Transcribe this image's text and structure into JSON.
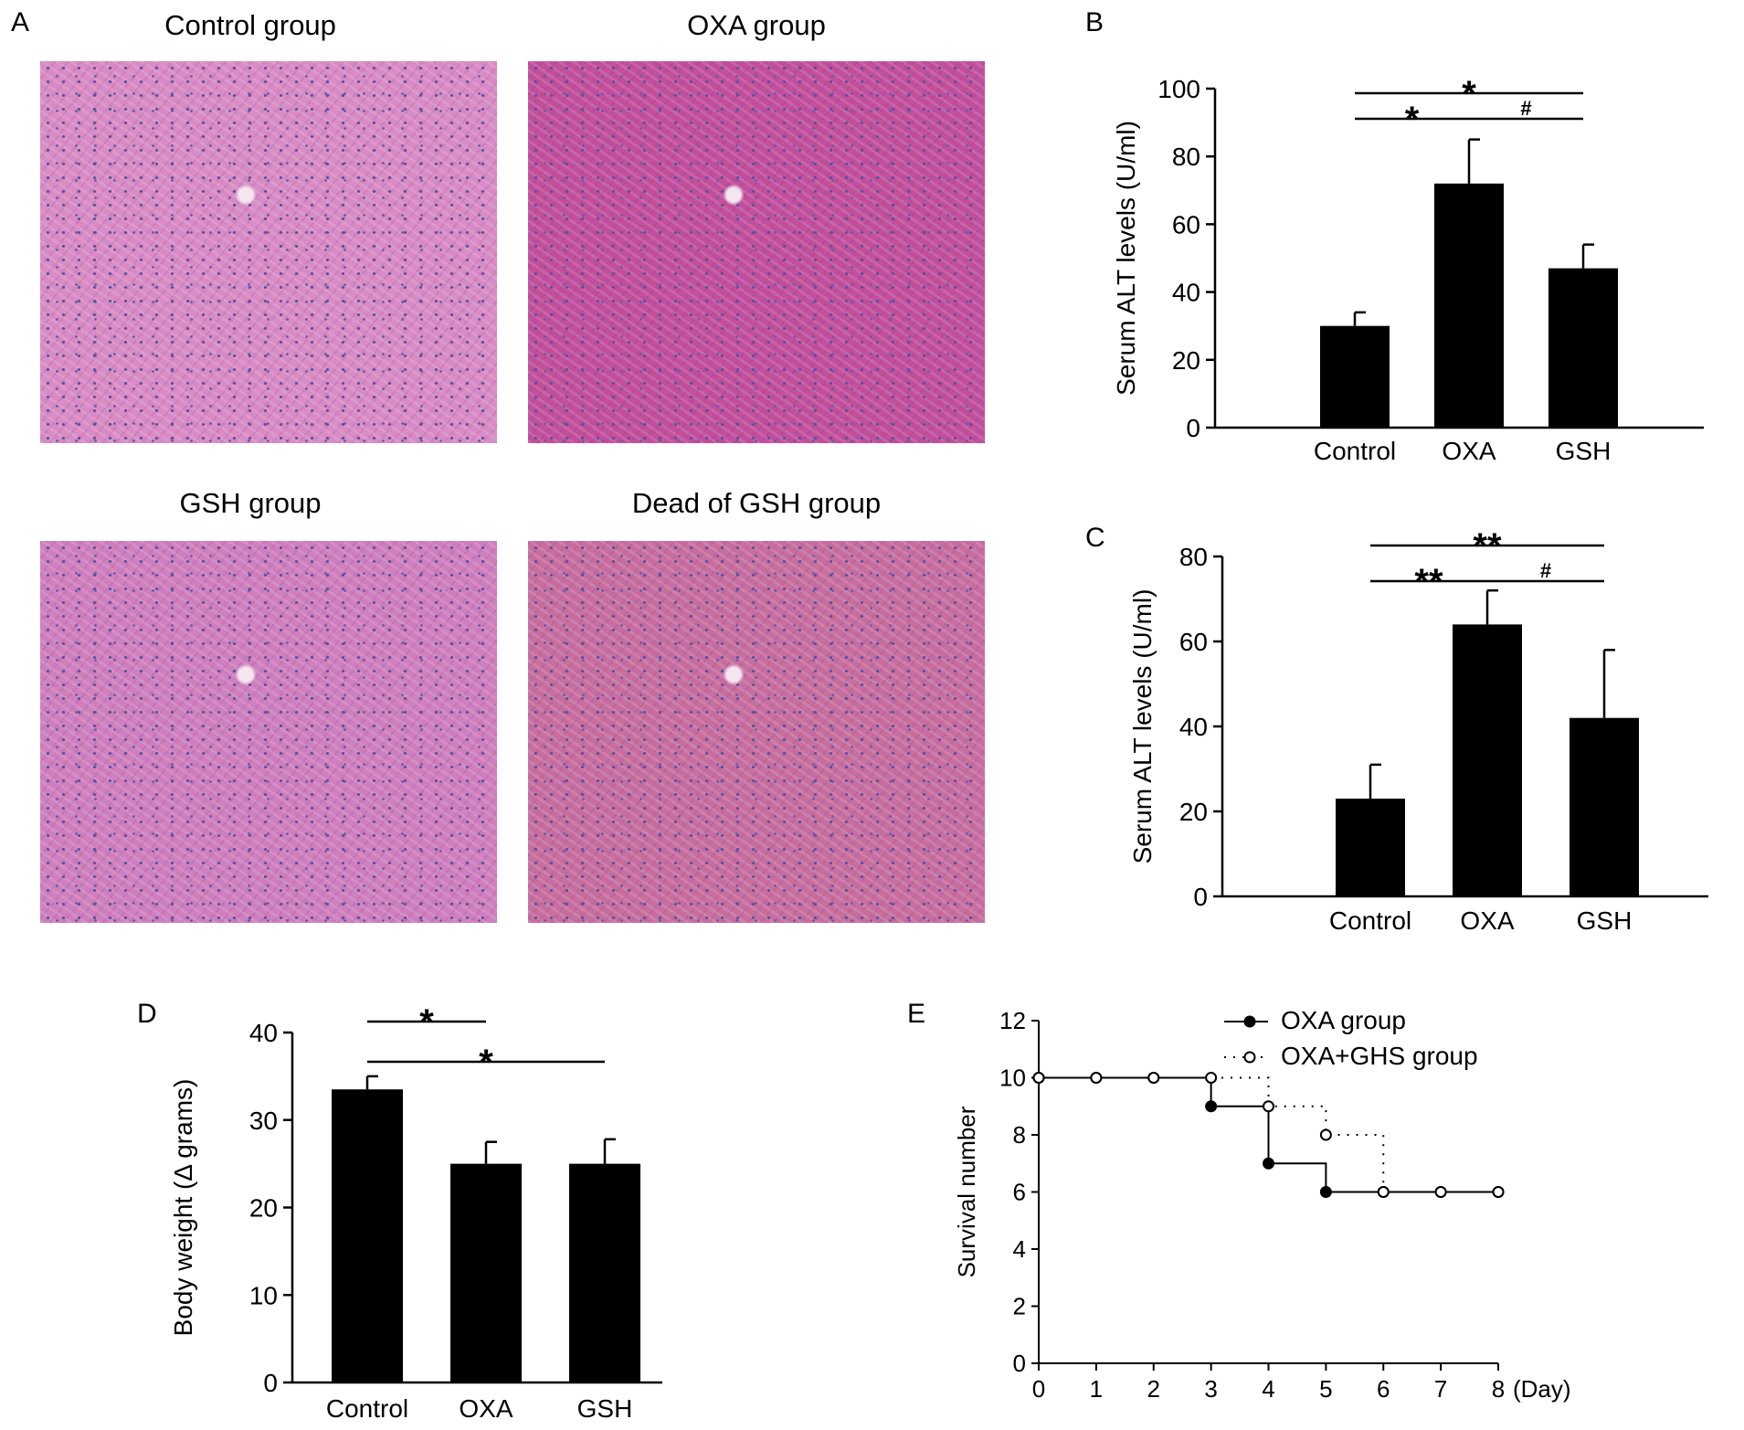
{
  "panels": {
    "A": {
      "letter": "A",
      "images": [
        {
          "title": "Control group",
          "stain": "#d88bc4"
        },
        {
          "title": "OXA group",
          "stain": "#c24f9c"
        },
        {
          "title": "GSH group",
          "stain": "#cf7fbd"
        },
        {
          "title": "Dead of GSH group",
          "stain": "#c76e9f"
        }
      ]
    },
    "B": {
      "letter": "B"
    },
    "C": {
      "letter": "C"
    },
    "D": {
      "letter": "D"
    },
    "E": {
      "letter": "E"
    }
  },
  "chart_data": [
    {
      "id": "B",
      "type": "bar",
      "categories": [
        "Control",
        "OXA",
        "GSH"
      ],
      "values": [
        30,
        72,
        47
      ],
      "errors": [
        4,
        13,
        7
      ],
      "ylabel": "Serum ALT levels (U/ml)",
      "ylim": [
        0,
        100
      ],
      "yticks": [
        0,
        20,
        40,
        60,
        80,
        100
      ],
      "bar_color": "#000000",
      "significance": [
        {
          "from": 0,
          "to": 2,
          "label": "*",
          "level": 2
        },
        {
          "from": 0,
          "to": 1,
          "label": "*",
          "level": 1
        },
        {
          "from": 1,
          "to": 2,
          "label": "#",
          "level": 1
        }
      ]
    },
    {
      "id": "C",
      "type": "bar",
      "categories": [
        "Control",
        "OXA",
        "GSH"
      ],
      "values": [
        23,
        64,
        42
      ],
      "errors": [
        8,
        8,
        16
      ],
      "ylabel": "Serum ALT levels (U/ml)",
      "ylim": [
        0,
        80
      ],
      "yticks": [
        0,
        20,
        40,
        60,
        80
      ],
      "bar_color": "#000000",
      "significance": [
        {
          "from": 0,
          "to": 2,
          "label": "**",
          "level": 2
        },
        {
          "from": 0,
          "to": 1,
          "label": "**",
          "level": 1
        },
        {
          "from": 1,
          "to": 2,
          "label": "#",
          "level": 1
        }
      ]
    },
    {
      "id": "D",
      "type": "bar",
      "categories": [
        "Control",
        "OXA",
        "GSH"
      ],
      "values": [
        33.5,
        25,
        25
      ],
      "errors": [
        1.5,
        2.5,
        2.8
      ],
      "ylabel": "Body weight (Δ grams)",
      "ylim": [
        0,
        40
      ],
      "yticks": [
        0,
        10,
        20,
        30,
        40
      ],
      "bar_color": "#000000",
      "significance": [
        {
          "from": 0,
          "to": 1,
          "label": "*",
          "level": 2
        },
        {
          "from": 0,
          "to": 2,
          "label": "*",
          "level": 1
        }
      ]
    },
    {
      "id": "E",
      "type": "line",
      "x": [
        0,
        1,
        2,
        3,
        4,
        5,
        6,
        7,
        8
      ],
      "xticks": [
        0,
        1,
        2,
        3,
        4,
        5,
        6,
        7,
        8
      ],
      "xunit": "(Day)",
      "ylabel": "Survival number",
      "ylim": [
        0,
        12
      ],
      "yticks": [
        0,
        2,
        4,
        6,
        8,
        10,
        12
      ],
      "legend_position": "top-right",
      "series": [
        {
          "name": "OXA group",
          "style": "step-solid",
          "marker": "filled",
          "values": [
            10,
            10,
            10,
            9,
            7,
            6,
            6,
            6,
            6
          ]
        },
        {
          "name": "OXA+GHS group",
          "style": "step-dotted",
          "marker": "open",
          "values": [
            10,
            10,
            10,
            10,
            9,
            8,
            6,
            6,
            6
          ]
        }
      ]
    }
  ]
}
